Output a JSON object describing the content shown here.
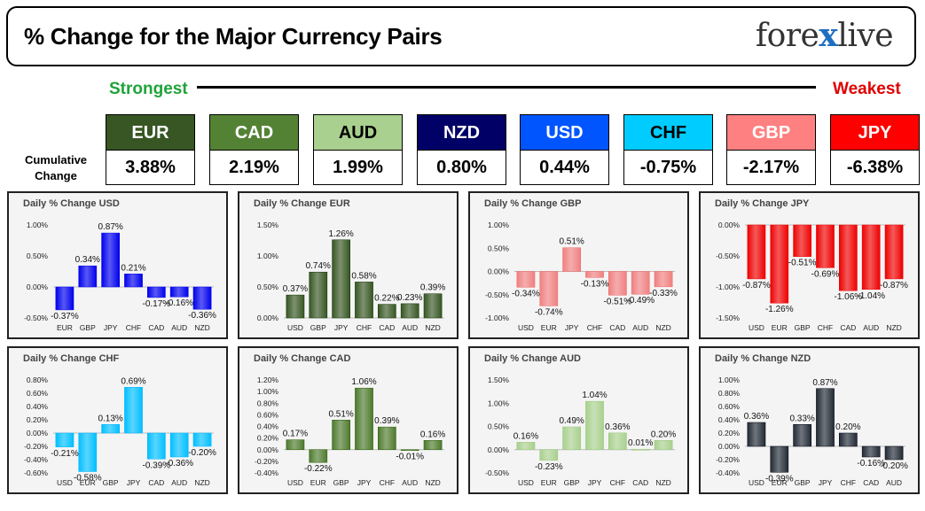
{
  "header": {
    "title": "% Change for the Major Currency Pairs",
    "logo_text_a": "fore",
    "logo_text_x": "x",
    "logo_text_b": "live"
  },
  "ranking": {
    "strongest_label": "Strongest",
    "weakest_label": "Weakest",
    "cumulative_label_1": "Cumulative",
    "cumulative_label_2": "Change"
  },
  "currencies": [
    {
      "code": "EUR",
      "value": "3.88%",
      "color": "#375623",
      "text_color": "#ffffff"
    },
    {
      "code": "CAD",
      "value": "2.19%",
      "color": "#548235",
      "text_color": "#ffffff"
    },
    {
      "code": "AUD",
      "value": "1.99%",
      "color": "#a9d08e",
      "text_color": "#000000"
    },
    {
      "code": "NZD",
      "value": "0.80%",
      "color": "#000066",
      "text_color": "#ffffff"
    },
    {
      "code": "USD",
      "value": "0.44%",
      "color": "#0055ff",
      "text_color": "#ffffff"
    },
    {
      "code": "CHF",
      "value": "-0.75%",
      "color": "#00ccff",
      "text_color": "#000000"
    },
    {
      "code": "GBP",
      "value": "-2.17%",
      "color": "#ff8080",
      "text_color": "#ffffff"
    },
    {
      "code": "JPY",
      "value": "-6.38%",
      "color": "#ff0000",
      "text_color": "#ffffff"
    }
  ],
  "chart_data": [
    {
      "type": "bar",
      "title": "Daily % Change USD",
      "color": "#0000ee",
      "categories": [
        "EUR",
        "GBP",
        "JPY",
        "CHF",
        "CAD",
        "AUD",
        "NZD"
      ],
      "values": [
        -0.37,
        0.34,
        0.87,
        0.21,
        -0.17,
        -0.16,
        -0.36
      ],
      "labels": [
        "-0.37%",
        "0.34%",
        "0.87%",
        "0.21%",
        "-0.17%",
        "-0.16%",
        "-0.36%"
      ],
      "ylim": [
        -0.5,
        1.0
      ],
      "ticks": [
        1.0,
        0.5,
        0.0,
        -0.5
      ],
      "tick_labels": [
        "1.00%",
        "0.50%",
        "0.00%",
        "-0.50%"
      ]
    },
    {
      "type": "bar",
      "title": "Daily % Change EUR",
      "color": "#375623",
      "categories": [
        "USD",
        "GBP",
        "JPY",
        "CHF",
        "CAD",
        "AUD",
        "NZD"
      ],
      "values": [
        0.37,
        0.74,
        1.26,
        0.58,
        0.22,
        0.23,
        0.39
      ],
      "labels": [
        "0.37%",
        "0.74%",
        "1.26%",
        "0.58%",
        "0.22%",
        "0.23%",
        "0.39%"
      ],
      "ylim": [
        0.0,
        1.5
      ],
      "ticks": [
        1.5,
        1.0,
        0.5,
        0.0
      ],
      "tick_labels": [
        "1.50%",
        "1.00%",
        "0.50%",
        "0.00%"
      ]
    },
    {
      "type": "bar",
      "title": "Daily % Change GBP",
      "color": "#f08080",
      "categories": [
        "USD",
        "EUR",
        "JPY",
        "CHF",
        "CAD",
        "AUD",
        "NZD"
      ],
      "values": [
        -0.34,
        -0.74,
        0.51,
        -0.13,
        -0.51,
        -0.49,
        -0.33
      ],
      "labels": [
        "-0.34%",
        "-0.74%",
        "0.51%",
        "-0.13%",
        "-0.51%",
        "-0.49%",
        "-0.33%"
      ],
      "ylim": [
        -1.0,
        1.0
      ],
      "ticks": [
        1.0,
        0.5,
        0.0,
        -0.5,
        -1.0
      ],
      "tick_labels": [
        "1.00%",
        "0.50%",
        "0.00%",
        "-0.50%",
        "-1.00%"
      ]
    },
    {
      "type": "bar",
      "title": "Daily % Change JPY",
      "color": "#ee0000",
      "categories": [
        "USD",
        "EUR",
        "GBP",
        "CHF",
        "CAD",
        "AUD",
        "NZD"
      ],
      "values": [
        -0.87,
        -1.26,
        -0.51,
        -0.69,
        -1.06,
        -1.04,
        -0.87
      ],
      "labels": [
        "-0.87%",
        "-1.26%",
        "-0.51%",
        "-0.69%",
        "-1.06%",
        "-1.04%",
        "-0.87%"
      ],
      "ylim": [
        -1.5,
        0.0
      ],
      "ticks": [
        0.0,
        -0.5,
        -1.0,
        -1.5
      ],
      "tick_labels": [
        "0.00%",
        "-0.50%",
        "-1.00%",
        "-1.50%"
      ]
    },
    {
      "type": "bar",
      "title": "Daily % Change CHF",
      "color": "#00bfff",
      "categories": [
        "USD",
        "EUR",
        "GBP",
        "JPY",
        "CAD",
        "AUD",
        "NZD"
      ],
      "values": [
        -0.21,
        -0.58,
        0.13,
        0.69,
        -0.39,
        -0.36,
        -0.2
      ],
      "labels": [
        "-0.21%",
        "-0.58%",
        "0.13%",
        "0.69%",
        "-0.39%",
        "-0.36%",
        "-0.20%"
      ],
      "ylim": [
        -0.6,
        0.8
      ],
      "ticks": [
        0.8,
        0.6,
        0.4,
        0.2,
        0.0,
        -0.2,
        -0.4,
        -0.6
      ],
      "tick_labels": [
        "0.80%",
        "0.60%",
        "0.40%",
        "0.20%",
        "0.00%",
        "-0.20%",
        "-0.40%",
        "-0.60%"
      ]
    },
    {
      "type": "bar",
      "title": "Daily % Change CAD",
      "color": "#4e7a2e",
      "categories": [
        "USD",
        "EUR",
        "GBP",
        "JPY",
        "CHF",
        "AUD",
        "NZD"
      ],
      "values": [
        0.17,
        -0.22,
        0.51,
        1.06,
        0.39,
        -0.01,
        0.16
      ],
      "labels": [
        "0.17%",
        "-0.22%",
        "0.51%",
        "1.06%",
        "0.39%",
        "-0.01%",
        "0.16%"
      ],
      "ylim": [
        -0.4,
        1.2
      ],
      "ticks": [
        1.2,
        1.0,
        0.8,
        0.6,
        0.4,
        0.2,
        0.0,
        -0.2,
        -0.4
      ],
      "tick_labels": [
        "1.20%",
        "1.00%",
        "0.80%",
        "0.60%",
        "0.40%",
        "0.20%",
        "0.00%",
        "-0.20%",
        "-0.40%"
      ]
    },
    {
      "type": "bar",
      "title": "Daily % Change AUD",
      "color": "#a9d08e",
      "categories": [
        "USD",
        "EUR",
        "GBP",
        "JPY",
        "CHF",
        "CAD",
        "NZD"
      ],
      "values": [
        0.16,
        -0.23,
        0.49,
        1.04,
        0.36,
        0.01,
        0.2
      ],
      "labels": [
        "0.16%",
        "-0.23%",
        "0.49%",
        "1.04%",
        "0.36%",
        "0.01%",
        "0.20%"
      ],
      "ylim": [
        -0.5,
        1.5
      ],
      "ticks": [
        1.5,
        1.0,
        0.5,
        0.0,
        -0.5
      ],
      "tick_labels": [
        "1.50%",
        "1.00%",
        "0.50%",
        "0.00%",
        "-0.50%"
      ]
    },
    {
      "type": "bar",
      "title": "Daily % Change NZD",
      "color": "#222a35",
      "categories": [
        "USD",
        "EUR",
        "GBP",
        "JPY",
        "CHF",
        "CAD",
        "AUD"
      ],
      "values": [
        0.36,
        -0.39,
        0.33,
        0.87,
        0.2,
        -0.16,
        -0.2
      ],
      "labels": [
        "0.36%",
        "-0.39%",
        "0.33%",
        "0.87%",
        "0.20%",
        "-0.16%",
        "-0.20%"
      ],
      "ylim": [
        -0.4,
        1.0
      ],
      "ticks": [
        1.0,
        0.8,
        0.6,
        0.4,
        0.2,
        0.0,
        -0.2,
        -0.4
      ],
      "tick_labels": [
        "1.00%",
        "0.80%",
        "0.60%",
        "0.40%",
        "0.20%",
        "0.00%",
        "-0.20%",
        "-0.40%"
      ]
    }
  ]
}
